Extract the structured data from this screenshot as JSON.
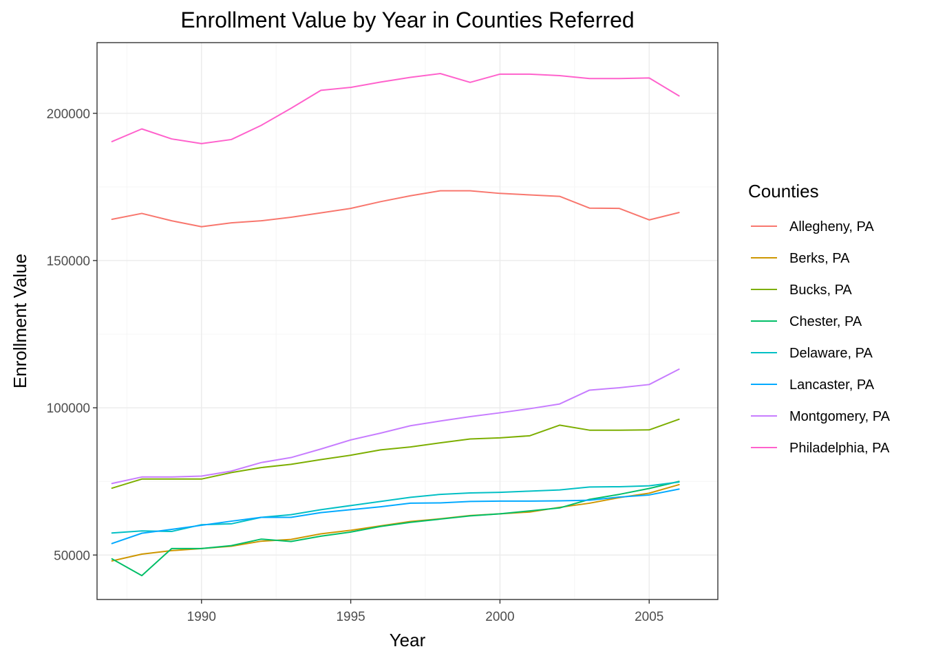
{
  "chart_data": {
    "type": "line",
    "title": "Enrollment Value by Year in Counties Referred",
    "xlabel": "Year",
    "ylabel": "Enrollment Value",
    "xlim": [
      1986.5,
      2007.3
    ],
    "ylim": [
      34900,
      224000
    ],
    "x_ticks": [
      1990,
      1995,
      2000,
      2005
    ],
    "y_ticks": [
      50000,
      100000,
      150000,
      200000
    ],
    "x_tick_labels": [
      "1990",
      "1995",
      "2000",
      "2005"
    ],
    "y_tick_labels": [
      "50000",
      "100000",
      "150000",
      "200000"
    ],
    "grid": true,
    "legend": {
      "title": "Counties",
      "position": "right"
    },
    "x": [
      1987,
      1988,
      1989,
      1990,
      1991,
      1992,
      1993,
      1994,
      1995,
      1996,
      1997,
      1998,
      1999,
      2000,
      2001,
      2002,
      2003,
      2004,
      2005,
      2006
    ],
    "series": [
      {
        "name": "Allegheny, PA",
        "color": "#F8766D",
        "values": [
          164000,
          166000,
          163500,
          161500,
          162800,
          163500,
          164700,
          166200,
          167700,
          170000,
          172000,
          173700,
          173700,
          172800,
          172300,
          171800,
          167800,
          167700,
          163800,
          166300
        ]
      },
      {
        "name": "Berks, PA",
        "color": "#CD9600",
        "values": [
          48000,
          50300,
          51500,
          52200,
          53000,
          54700,
          55300,
          57200,
          58400,
          59900,
          61400,
          62300,
          63400,
          64000,
          64600,
          66200,
          67600,
          69500,
          71000,
          73900
        ]
      },
      {
        "name": "Bucks, PA",
        "color": "#7CAE00",
        "values": [
          72700,
          75800,
          75800,
          75800,
          78000,
          79700,
          80800,
          82400,
          83900,
          85700,
          86700,
          88100,
          89400,
          89800,
          90500,
          94100,
          92400,
          92400,
          92500,
          96100
        ]
      },
      {
        "name": "Chester, PA",
        "color": "#00BE67",
        "values": [
          48700,
          43000,
          52200,
          52200,
          53200,
          55400,
          54600,
          56400,
          57800,
          59700,
          61100,
          62200,
          63300,
          64000,
          65000,
          66000,
          68900,
          70600,
          72600,
          75000
        ]
      },
      {
        "name": "Delaware, PA",
        "color": "#00BFC4",
        "values": [
          57500,
          58200,
          58000,
          60300,
          60600,
          62800,
          63700,
          65400,
          66800,
          68200,
          69600,
          70600,
          71100,
          71300,
          71700,
          72100,
          73100,
          73200,
          73500,
          74800
        ]
      },
      {
        "name": "Lancaster, PA",
        "color": "#00A9FF",
        "values": [
          53900,
          57400,
          58700,
          60100,
          61500,
          62800,
          62800,
          64400,
          65400,
          66400,
          67600,
          67700,
          68200,
          68300,
          68300,
          68400,
          68600,
          69700,
          70400,
          72400
        ]
      },
      {
        "name": "Montgomery, PA",
        "color": "#C77CFF",
        "values": [
          74300,
          76500,
          76500,
          76800,
          78500,
          81400,
          83100,
          86000,
          89100,
          91400,
          93900,
          95500,
          97000,
          98300,
          99700,
          101300,
          106000,
          106800,
          107900,
          113100
        ]
      },
      {
        "name": "Philadelphia, PA",
        "color": "#FF61CC",
        "values": [
          190400,
          194700,
          191300,
          189700,
          191100,
          195900,
          201700,
          207800,
          208800,
          210600,
          212200,
          213500,
          210500,
          213300,
          213300,
          212800,
          211800,
          211800,
          212000,
          205900
        ]
      }
    ]
  }
}
